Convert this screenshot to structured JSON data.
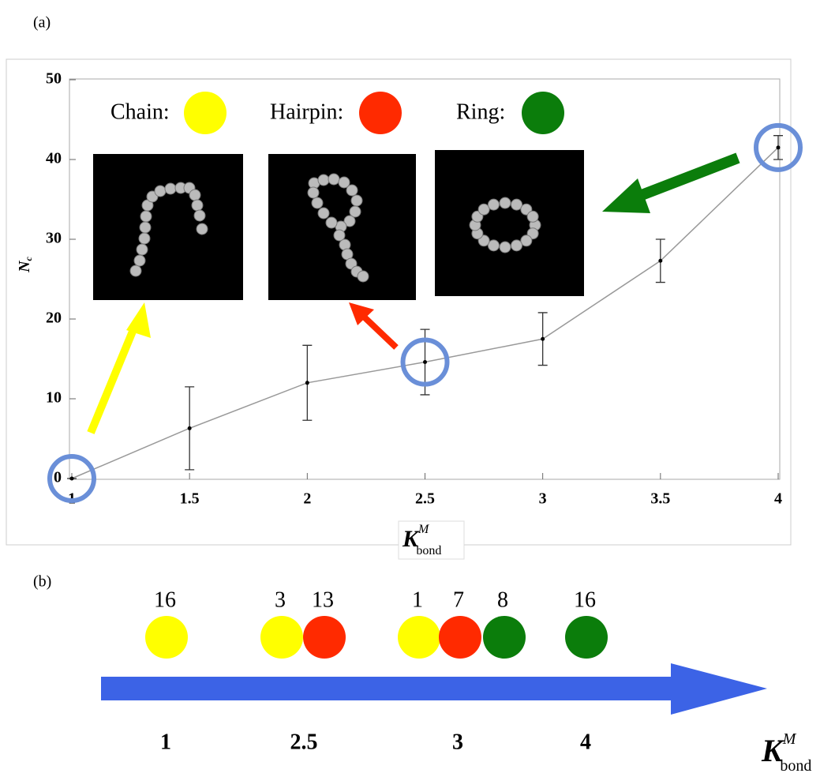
{
  "panel_labels": [
    "(a)",
    "(b)"
  ],
  "chart_data": {
    "type": "line",
    "x_label": {
      "base": "K",
      "sup": "M",
      "sub": "bond"
    },
    "y_label": {
      "base": "N",
      "sub": "c"
    },
    "x": [
      1,
      1.5,
      2,
      2.5,
      3,
      3.5,
      4
    ],
    "values": [
      0,
      6.3,
      12,
      14.6,
      17.5,
      27.3,
      41.5
    ],
    "errors": [
      0,
      5.2,
      4.7,
      4.1,
      3.3,
      2.7,
      1.5
    ],
    "color": "#999999",
    "xlim": [
      1,
      4
    ],
    "ylim": [
      0,
      50
    ],
    "xticks": [
      1,
      1.5,
      2,
      2.5,
      3,
      3.5,
      4
    ],
    "yticks": [
      0,
      10,
      20,
      30,
      40,
      50
    ],
    "legend": [
      {
        "name": "Chain:",
        "color": "#ffff00"
      },
      {
        "name": "Hairpin:",
        "color": "#ff2a00"
      },
      {
        "name": "Ring:",
        "color": "#0b7d0b"
      }
    ]
  },
  "diagram": {
    "groups": [
      {
        "label": "1",
        "items": [
          {
            "count": 16,
            "color": "#ffff00"
          }
        ]
      },
      {
        "label": "2.5",
        "items": [
          {
            "count": 3,
            "color": "#ffff00"
          },
          {
            "count": 13,
            "color": "#ff2a00"
          }
        ]
      },
      {
        "label": "3",
        "items": [
          {
            "count": 1,
            "color": "#ffff00"
          },
          {
            "count": 7,
            "color": "#ff2a00"
          },
          {
            "count": 8,
            "color": "#0b7d0b"
          }
        ]
      },
      {
        "label": "4",
        "items": [
          {
            "count": 16,
            "color": "#0b7d0b"
          }
        ]
      }
    ],
    "axis_label": {
      "base": "K",
      "sup": "M",
      "sub": "bond"
    }
  }
}
